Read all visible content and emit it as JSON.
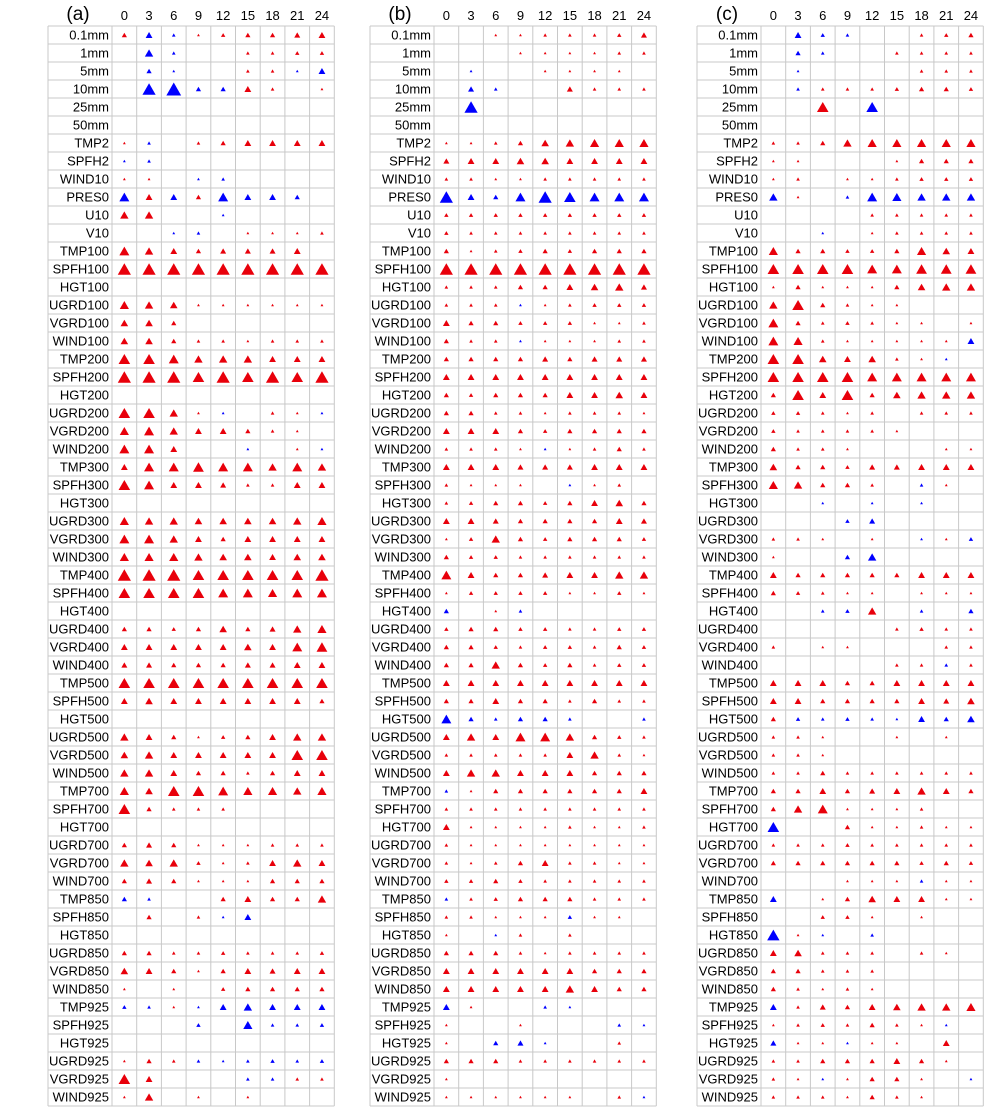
{
  "chart_data": {
    "type": "triangle-significance-grid",
    "colors": {
      "positive": "#e8000b",
      "negative": "#0000ff",
      "grid": "#c8c8c8"
    },
    "panels": [
      {
        "title": "(a)",
        "columns": [
          "0",
          "3",
          "6",
          "9",
          "12",
          "15",
          "18",
          "21",
          "24"
        ],
        "rows": [
          "0.1mm",
          "1mm",
          "5mm",
          "10mm",
          "25mm",
          "50mm",
          "TMP2",
          "SPFH2",
          "WIND10",
          "PRES0",
          "U10",
          "V10",
          "TMP100",
          "SPFH100",
          "HGT100",
          "UGRD100",
          "VGRD100",
          "WIND100",
          "TMP200",
          "SPFH200",
          "HGT200",
          "UGRD200",
          "VGRD200",
          "WIND200",
          "TMP300",
          "SPFH300",
          "HGT300",
          "UGRD300",
          "VGRD300",
          "WIND300",
          "TMP400",
          "SPFH400",
          "HGT400",
          "UGRD400",
          "VGRD400",
          "WIND400",
          "TMP500",
          "SPFH500",
          "HGT500",
          "UGRD500",
          "VGRD500",
          "WIND500",
          "TMP700",
          "SPFH700",
          "HGT700",
          "UGRD700",
          "VGRD700",
          "WIND700",
          "TMP850",
          "SPFH850",
          "HGT850",
          "UGRD850",
          "VGRD850",
          "WIND850",
          "TMP925",
          "SPFH925",
          "HGT925",
          "UGRD925",
          "VGRD925",
          "WIND925"
        ],
        "values": [
          "0.2,-0.3,-0.1,0.05,0.15,0.2,0.2,0.25,0.3",
          "0,-0.4,-0.1,0,0,0.1,0.1,0.15,0.15",
          "0,-0.2,-0.05,0,0,0.1,0.1,-0.05,-0.3",
          "0,-0.7,-0.8,-0.2,-0.2,0.3,0.1,0,0.05",
          "0,0,0,0,0,0,0,0,0",
          "0,0,0,0,0,0,0,0,0",
          "0.05,-0.1,0,0.1,0.2,0.3,0.3,0.3,0.3",
          "-0.05,-0.1,0,0,0,0,0,0,0",
          "0.05,0.05,0,-0.05,-0.1,0,0,0,0",
          "-0.5,0.3,-0.3,0.2,-0.5,-0.3,-0.3,-0.2,0",
          "0.4,0.4,0,0,-0.05,0,0,0,0",
          "0,0,-0.05,-0.1,0,0.05,0.05,0.05,0.1",
          "0.5,0.4,0.3,0.2,0.25,0.25,0.25,0.3,0",
          "0.7,0.7,0.7,0.7,0.7,0.7,0.7,0.7,0.7",
          "0,0,0,0,0,0,0,0,0",
          "0.45,0.4,0.35,0.05,0.05,0.05,0.05,0.05,0.05",
          "0.35,0.35,0.2,0,0,0,0,0,0",
          "0.35,0.35,0.2,0.1,0.1,0.05,0.1,0.1,0.1",
          "0.6,0.6,0.5,0.4,0.4,0.4,0.3,0.3,0.3",
          "0.7,0.7,0.7,0.6,0.7,0.6,0.7,0.6,0.7",
          "0,0,0,0,0,0,0,0,0",
          "0.6,0.6,0.4,0.05,-0.05,0,0.1,0.05,-0.05",
          "0.45,0.5,0.4,0.3,0.3,0.2,0.1,0.05,0",
          "0.5,0.5,0.3,0,0,-0.05,0,0.05,-0.05",
          "0.3,0.5,0.5,0.55,0.5,0.5,0.4,0.5,0.4",
          "0.6,0.5,0.3,0.3,0.25,0.1,0.1,0.3,0.3",
          "0,0,0,0,0,0,0,0,0",
          "0.45,0.4,0.4,0.35,0.35,0.35,0.35,0.4,0.45",
          "0.5,0.5,0.4,0.3,0.2,0.3,0.3,0.3,0.3",
          "0.45,0.45,0.45,0.4,0.35,0.35,0.3,0.35,0.35",
          "0.7,0.7,0.7,0.6,0.6,0.6,0.6,0.6,0.7",
          "0.6,0.6,0.6,0.6,0.5,0.5,0.45,0.5,0.5",
          "0,0,0,0,0,0,0,0,0",
          "0.2,0.2,0.15,0.2,0.35,0.2,0.25,0.4,0.45",
          "0.3,0.3,0.3,0.3,0.3,0.35,0.3,0.5,0.55",
          "0.25,0.25,0.2,0.2,0.2,0.25,0.25,0.3,0.3",
          "0.6,0.6,0.6,0.6,0.6,0.6,0.6,0.6,0.6",
          "0.3,0.35,0.3,0.3,0.3,0.3,0.3,0.3,0.2",
          "0,0,0,0,0,0,0,0,0",
          "0.4,0.3,0.2,0.05,0.15,0.2,0.3,0.4,0.4",
          "0.35,0.4,0.3,0.3,0.3,0.3,0.3,0.6,0.6",
          "0.4,0.4,0.3,0.2,0.2,0.1,0.2,0.3,0.3",
          "0.45,0.35,0.6,0.6,0.5,0.45,0.45,0.4,0.45",
          "0.6,0.2,0.1,0.1,0.1,0,0,0,0",
          "0,0,0,0,0,0,0,0,0",
          "0.2,0.25,0.2,0.05,0.05,0.05,0.1,0.1,0.1",
          "0.4,0.35,0.4,0.15,0.05,0.1,0.3,0.4,0.3",
          "0.2,0.25,0.2,0.05,0.05,0.05,0.2,0.2,0.2",
          "-0.2,-0.1,0,0,0.2,0.3,0.2,0.2,0.4",
          "0,0.2,0,0.1,-0.05,-0.3,0,0,0",
          "0,0,0,0,0,0,0,0,0",
          "0.2,0.2,0.1,0.1,0.15,0.1,0.1,0.1,0.15",
          "0.35,0.3,0.2,0.05,0.2,0.3,0.25,0.3,0.3",
          "0.05,0,0.05,0,0.15,0.2,0.2,0.2,0.2",
          "-0.15,-0.1,0.05,-0.05,-0.3,-0.4,-0.3,-0.3,-0.3",
          "0,0,0,-0.15,0,-0.45,-0.1,-0.1,-0.15",
          "0,0,0,0,0,0,0,0,0",
          "0.05,0.2,0.1,-0.1,-0.05,-0.1,-0.15,-0.1,-0.15",
          "0.6,0.3,0,0,0,-0.1,-0.1,0.1,0.1",
          "0.05,0.4,0,0.05,0,0.05,0,0,0"
        ]
      },
      {
        "title": "(b)",
        "columns": [
          "0",
          "3",
          "6",
          "9",
          "12",
          "15",
          "18",
          "21",
          "24"
        ],
        "rows": [
          "0.1mm",
          "1mm",
          "5mm",
          "10mm",
          "25mm",
          "50mm",
          "TMP2",
          "SPFH2",
          "WIND10",
          "PRES0",
          "U10",
          "V10",
          "TMP100",
          "SPFH100",
          "HGT100",
          "UGRD100",
          "VGRD100",
          "WIND100",
          "TMP200",
          "SPFH200",
          "HGT200",
          "UGRD200",
          "VGRD200",
          "WIND200",
          "TMP300",
          "SPFH300",
          "HGT300",
          "UGRD300",
          "VGRD300",
          "WIND300",
          "TMP400",
          "SPFH400",
          "HGT400",
          "UGRD400",
          "VGRD400",
          "WIND400",
          "TMP500",
          "SPFH500",
          "HGT500",
          "UGRD500",
          "VGRD500",
          "WIND500",
          "TMP700",
          "SPFH700",
          "HGT700",
          "UGRD700",
          "VGRD700",
          "WIND700",
          "TMP850",
          "SPFH850",
          "HGT850",
          "UGRD850",
          "VGRD850",
          "WIND850",
          "TMP925",
          "SPFH925",
          "HGT925",
          "UGRD925",
          "VGRD925",
          "WIND925"
        ],
        "values": [
          "0,0,0.05,0.05,0.1,0.1,0.1,0.15,0.25",
          "0,0,0,0.05,0.05,0.05,0.05,0.1,0.1",
          "0,-0.05,0,0,0.05,0.05,0.05,0.05,0",
          "0,-0.25,-0.1,0,0,0.25,0.1,0.1,0.1",
          "0,-0.7,0,0,0,0,0,0,0",
          "0,0,0,0,0,0,0,0,0",
          "0.05,0.05,0.1,0.2,0.35,0.4,0.45,0.45,0.45",
          "0.25,0.3,0.3,0.35,0.35,0.3,0.3,0.3,0.3",
          "0.1,0.1,0.05,0.05,0.1,0.1,0.1,0.1,0.1",
          "-0.7,-0.3,-0.2,-0.5,-0.7,-0.6,-0.5,-0.5,-0.5",
          "0.15,0.15,0.15,0.15,0.15,0.15,0.15,0.15,0.15",
          "0.15,0.1,0.1,0.1,0.1,0.1,0.1,0.1,0.1",
          "0.2,0.05,0.1,0.15,0.2,0.15,0.2,0.2,0.2",
          "0.7,0.7,0.7,0.7,0.7,0.7,0.7,0.7,0.7",
          "0.1,0.1,0.1,0.2,0.2,0.3,0.35,0.4,0.25",
          "0.1,0.1,0.1,-0.05,0.05,0.1,0.15,0.15,0.15",
          "0.3,0.2,0.2,0.15,0.15,0.15,0.05,0.05,0.1",
          "0.2,0.1,0.1,-0.05,0.05,0.05,0.05,0.1,0.1",
          "0.2,0.2,0.2,0.2,0.25,0.2,0.25,0.25,0.25",
          "0.3,0.3,0.3,0.3,0.3,0.3,0.3,0.3,0.3",
          "0.2,0.15,0.2,0.2,0.2,0.3,0.3,0.35,0.3",
          "0.2,0.2,0.1,0.1,0.05,0.1,0.1,0.1,0.05",
          "0.3,0.3,0.3,0.2,0.15,0.2,0.2,0.2,0.2",
          "0.1,0.1,0.1,0.05,-0.05,0.05,0.1,0.2,0.1",
          "0.3,0.3,0.3,0.25,0.25,0.25,0.3,0.3,0.3",
          "0.1,0.05,0.05,0.05,0,-0.05,0.05,0.1,0",
          "0.1,0.15,0.2,0.2,0.15,0.2,0.3,0.35,0.2",
          "0.3,0.3,0.25,0.2,0.2,0.2,0.2,0.3,0.25",
          "0.05,0.15,0.4,0.2,0.15,0.2,0.2,0.2,0.15",
          "0.2,0.15,0.15,0.1,0.1,0.1,0.1,0.1,0.1",
          "0.5,0.3,0.2,0.2,0.25,0.3,0.3,0.4,0.4",
          "0.05,0.15,0.15,0.15,0.15,0.05,0.05,0.15,0.05",
          "-0.2,0,0.05,-0.1,0,0,0,0,0",
          "0.15,0.2,0.2,0.15,0.15,0.1,0.1,0.15,0.15",
          "0.2,0.2,0.15,0.1,0.15,0.15,0.1,0.2,0.15",
          "0.2,0.2,0.4,0.2,0.15,0.2,0.1,0.15,0.15",
          "0.3,0.3,0.3,0.3,0.3,0.3,0.3,0.3,0.3",
          "0.2,0.2,0.3,0.2,0.2,0.1,0.2,0.1,0.1",
          "-0.5,-0.2,-0.1,-0.2,-0.2,-0.1,0,0,-0.1",
          "0.3,0.4,0.3,0.5,0.5,0.4,0.2,0.15,0.1",
          "0.1,0.1,0.1,0.1,0.1,0.3,0.4,0.1,0.05",
          "0.3,0.4,0.4,0.3,0.3,0.3,0.2,0.2,0.2",
          "-0.1,0.05,0.2,0.2,0.2,0.2,0.2,0.2,0.3",
          "0.1,0.1,0.1,0.1,0.1,0.1,0.1,0.1,0.1",
          "0.3,0.05,0.05,0.05,0.05,0.1,0.05,0.05,0.1",
          "0.1,0.05,0.05,0.05,0.05,0.05,0.05,0.05,0.05",
          "0.1,0.05,0.1,0.2,0.3,0.1,0.1,0.05,0.05",
          "0.15,0.15,0.2,0.15,0.1,0.1,0.1,0.1,0.1",
          "-0.1,0.1,0.15,0.2,0.2,0.2,0.1,0.1,0.1",
          "0.1,0.1,0.05,0.05,0.05,-0.15,0.05,0.05,0",
          "0.05,0,-0.05,0.1,0,0.1,0,0,0",
          "0.2,0.2,0.2,0.1,0.05,0.1,0.1,0.1,0.1",
          "0.3,0.3,0.3,0.3,0.3,0.3,0.2,0.2,0.2",
          "0.3,0.3,0.3,0.3,0.3,0.4,0.3,0.2,0.2",
          "-0.3,0.05,0,0,-0.1,-0.05,0,0,0",
          "0.05,0,0,0.05,0,0,0,-0.1,-0.05",
          "0.05,0,-0.2,-0.25,-0.05,0,0,0.1,0",
          "0.2,0.2,0.2,0.1,0.1,0.1,0.1,0.1,0.1",
          "0.05,0,0,0,0,0,0,0,0",
          "0.05,0.05,0.05,0.05,0.05,0.05,0,0.1,-0.05"
        ]
      },
      {
        "title": "(c)",
        "columns": [
          "0",
          "3",
          "6",
          "9",
          "12",
          "15",
          "18",
          "21",
          "24"
        ],
        "rows": [
          "0.1mm",
          "1mm",
          "5mm",
          "10mm",
          "25mm",
          "50mm",
          "TMP2",
          "SPFH2",
          "WIND10",
          "PRES0",
          "U10",
          "V10",
          "TMP100",
          "SPFH100",
          "HGT100",
          "UGRD100",
          "VGRD100",
          "WIND100",
          "TMP200",
          "SPFH200",
          "HGT200",
          "UGRD200",
          "VGRD200",
          "WIND200",
          "TMP300",
          "SPFH300",
          "HGT300",
          "UGRD300",
          "VGRD300",
          "WIND300",
          "TMP400",
          "SPFH400",
          "HGT400",
          "UGRD400",
          "VGRD400",
          "WIND400",
          "TMP500",
          "SPFH500",
          "HGT500",
          "UGRD500",
          "VGRD500",
          "WIND500",
          "TMP700",
          "SPFH700",
          "HGT700",
          "UGRD700",
          "VGRD700",
          "WIND700",
          "TMP850",
          "SPFH850",
          "HGT850",
          "UGRD850",
          "VGRD850",
          "WIND850",
          "TMP925",
          "SPFH925",
          "HGT925",
          "UGRD925",
          "VGRD925",
          "WIND925"
        ],
        "values": [
          "0,-0.3,-0.15,-0.1,0,0,0.1,0.15,0.2",
          "0,-0.2,-0.1,0,0,0.1,0.1,0.1,0.1",
          "0,-0.05,0,0,0,0,0.1,0.1,0.1",
          "0,-0.1,0.1,0.1,0.1,0.15,0.2,0.2,0.15",
          "0,0,0.6,0,-0.6,0,0,0,0",
          "0,0,0,0,0,0,0,0,0",
          "0.1,0.1,0.2,0.4,0.45,0.45,0.45,0.45,0.45",
          "0.05,0.05,0,0,0,0.05,0.2,0.2,0.2",
          "0.05,0.1,0,0.05,0.05,0.1,0.15,0.15,0.15",
          "-0.4,0.05,0,-0.1,-0.5,-0.45,-0.4,-0.4,-0.4",
          "0,0,0,0,0.1,0.1,0.1,0.1,0.1",
          "0,0,-0.05,0,0.05,0.1,0.1,0.1,0.1",
          "0.45,0.2,0.2,0.15,0.15,0.2,0.45,0.35,0.3",
          "0.6,0.6,0.6,0.6,0.5,0.5,0.55,0.55,0.55",
          "0.05,0.2,0.05,0.05,0.05,0.2,0.35,0.4,0.4",
          "0.4,0.6,0.2,0.1,0.05,0.05,0,0,0",
          "0.5,0.2,0.1,0.15,0.1,0.05,0.05,0,0.05",
          "0.5,0.45,0.1,0.05,0.05,0.05,0.05,0.05,-0.3",
          "0.6,0.6,0.35,0.3,0.35,0.1,0.05,-0.05,0",
          "0.6,0.6,0.6,0.6,0.5,0.5,0.5,0.5,0.5",
          "0.2,0.6,0.3,0.6,0.2,0.35,0.4,0.4,0.4",
          "0.15,0.15,0.1,0.05,0.1,0,0.1,0.1,0.1",
          "0.15,0.1,0.1,0.1,0.1,0.05,0,0,0",
          "0.2,0.1,0.1,0.05,0,0,0,0.05,0.05",
          "0.35,0.2,0.2,0.15,0.25,0.25,0.3,0.3,0.3",
          "0.45,0.4,0.2,0.2,0.1,0,-0.1,0.05,0",
          "0,0,-0.05,0,-0.05,0,-0.05,0,0",
          "0,0,0,-0.15,-0.25,0,0,0,0",
          "0.1,0.1,0.05,0,0.05,0,-0.05,0.05,-0.15",
          "0.05,0,0,-0.2,-0.4,0,0,0,0",
          "0.3,0.2,0.2,0.2,0.2,0.2,0.3,0.3,0.3",
          "0.2,0.15,0.1,0.05,0.05,0,0.05,0.05,0.05",
          "0,0,-0.1,-0.15,0.4,0,-0.1,0,-0.2",
          "0,0,0,0,0,0.1,0.15,0.1,0.1",
          "0.1,0,0.05,0.05,0,0,0,0.1,0.1",
          "0,0,0,0,0,0.1,0.1,-0.1,0.1",
          "0.3,0.3,0.3,0.2,0.2,0.3,0.3,0.3,0.3",
          "0.3,0.3,0.2,0.2,0.2,0.2,0.3,0.25,0.35",
          "0.2,-0.15,-0.1,-0.15,-0.1,-0.05,-0.3,-0.2,-0.35",
          "0.1,0.1,0.05,0,0,0.05,0,0.05,0",
          "0.1,0.1,0.05,0,0,0,0,0,0",
          "0.1,0.1,0.2,0.1,0.1,0.1,0.1,0.1,0.1",
          "0.2,0.2,0.3,0.2,0.25,0.3,0.4,0.3,0.2",
          "0.2,0.4,0.5,0.05,0.05,0.05,0.1,0,0",
          "-0.6,0,0,0.2,0.05,0.05,0.1,0.05,0.05",
          "0.1,0.1,0.1,0.15,0.1,0.1,0.1,0.1,0.1",
          "0.2,0.2,0.2,0.2,0.2,0.2,0.15,0.2,0.15",
          "0,0,0,0.05,0.05,0.05,-0.1,0.05,0.05",
          "-0.3,0,0.05,0.2,0.35,0.3,0.3,0.05,0.05",
          "0,0,0.15,0.15,0.05,0,0.05,0,0",
          "-0.65,0.05,-0.05,0,-0.1,0,0,0,0",
          "0.3,0.35,0.1,0.1,0.1,0,0.1,0.05,0",
          "0.2,0.2,0.1,0.1,0.1,0,0,0,0",
          "0.2,0.1,0.05,0.1,0.05,0,0,0,0",
          "-0.3,0.1,0.25,0.2,0.3,0.35,0.4,0.4,0.45",
          "0.05,0.1,0.15,0.1,0.2,0.1,0.05,-0.05,0",
          "-0.25,0.05,0.05,-0.05,0.05,0.05,0,0.3,0",
          "0.1,0.1,0.2,0.2,0.2,0.3,0.2,0.05,0",
          "0.1,0.05,-0.05,0.05,0.2,0.2,0.05,0,-0.05",
          "0.1,0.1,0.1,0.05,0.2,0.1,0.05,0,0"
        ]
      }
    ]
  }
}
